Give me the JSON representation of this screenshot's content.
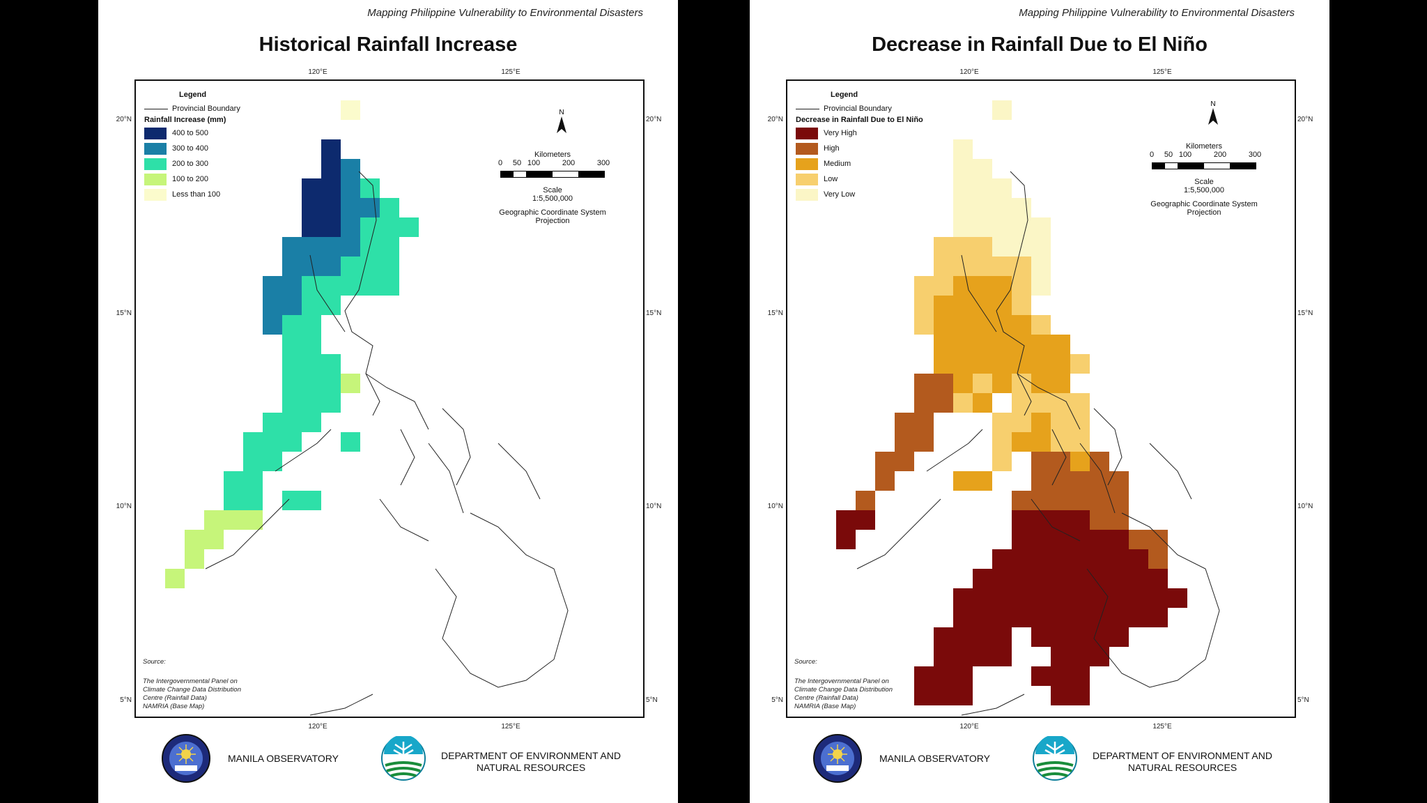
{
  "maps": [
    {
      "header": "Mapping Philippine Vulnerability to Environmental Disasters",
      "title": "Historical Rainfall Increase",
      "legend": {
        "heading": "Legend",
        "boundary_label": "Provincial Boundary",
        "title": "Rainfall Increase (mm)",
        "items": [
          {
            "label": "400 to 500",
            "color": "#0d2a6e"
          },
          {
            "label": "300 to 400",
            "color": "#1a7fa6"
          },
          {
            "label": "200 to 300",
            "color": "#2ee0a8"
          },
          {
            "label": "100 to 200",
            "color": "#c6f57a"
          },
          {
            "label": "Less than 100",
            "color": "#fbfbcc"
          }
        ]
      },
      "north_label": "N",
      "scale": {
        "label": "Kilometers",
        "ticks": [
          "0",
          "50",
          "100",
          "200",
          "300"
        ],
        "scale_text": "Scale",
        "ratio": "1:5,500,000",
        "projection_line1": "Geographic Coordinate System",
        "projection_line2": "Projection"
      },
      "source": {
        "label": "Source:",
        "lines": [
          "The Intergovernmental Panel on",
          "Climate Change Data Distribution",
          "Centre (Rainfall Data)",
          "NAMRIA (Base Map)"
        ]
      },
      "axis": {
        "top": [
          "120°E",
          "125°E"
        ],
        "bottom": [
          "120°E",
          "125°E"
        ],
        "left": [
          "20°N",
          "15°N",
          "10°N",
          "5°N"
        ],
        "right": [
          "20°N",
          "15°N",
          "10°N",
          "5°N"
        ]
      },
      "logos": {
        "left_org": "MANILA OBSERVATORY",
        "right_org_line1": "DEPARTMENT OF ENVIRONMENT AND",
        "right_org_line2": "NATURAL RESOURCES"
      }
    },
    {
      "header": "Mapping Philippine Vulnerability to Environmental Disasters",
      "title": "Decrease in Rainfall Due to El Niño",
      "legend": {
        "heading": "Legend",
        "boundary_label": "Provincial Boundary",
        "title": "Decrease in Rainfall Due to El Niño",
        "items": [
          {
            "label": "Very High",
            "color": "#7a0a0a"
          },
          {
            "label": "High",
            "color": "#b35a1e"
          },
          {
            "label": "Medium",
            "color": "#e6a21c"
          },
          {
            "label": "Low",
            "color": "#f7cf6e"
          },
          {
            "label": "Very Low",
            "color": "#fbf6c6"
          }
        ]
      },
      "north_label": "N",
      "scale": {
        "label": "Kilometers",
        "ticks": [
          "0",
          "50",
          "100",
          "200",
          "300"
        ],
        "scale_text": "Scale",
        "ratio": "1:5,500,000",
        "projection_line1": "Geographic Coordinate System",
        "projection_line2": "Projection"
      },
      "source": {
        "label": "Source:",
        "lines": [
          "The Intergovernmental Panel on",
          "Climate Change Data Distribution",
          "Centre (Rainfall Data)",
          "NAMRIA (Base Map)"
        ]
      },
      "axis": {
        "top": [
          "120°E",
          "125°E"
        ],
        "bottom": [
          "120°E",
          "125°E"
        ],
        "left": [
          "20°N",
          "15°N",
          "10°N",
          "5°N"
        ],
        "right": [
          "20°N",
          "15°N",
          "10°N",
          "5°N"
        ]
      },
      "logos": {
        "left_org": "MANILA OBSERVATORY",
        "right_org_line1": "DEPARTMENT OF ENVIRONMENT AND",
        "right_org_line2": "NATURAL RESOURCES"
      }
    }
  ]
}
